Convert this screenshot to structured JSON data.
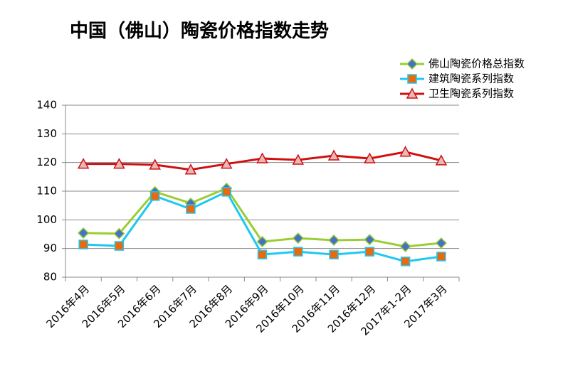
{
  "chart_data": {
    "type": "line",
    "title": "中国（佛山）陶瓷价格指数走势",
    "categories": [
      "2016年4月",
      "2016年5月",
      "2016年6月",
      "2016年7月",
      "2016年8月",
      "2016年9月",
      "2016年10月",
      "2016年11月",
      "2016年12月",
      "2017年1-2月",
      "2017年3月"
    ],
    "series": [
      {
        "name": "佛山陶瓷价格总指数",
        "color": "#9acd32",
        "marker": "diamond",
        "marker_color": "#4472c4",
        "values": [
          95.4,
          95.2,
          109.8,
          105.8,
          111,
          92.4,
          93.6,
          92.9,
          93.1,
          90.7,
          91.9
        ]
      },
      {
        "name": "建筑陶瓷系列指数",
        "color": "#1ec8f0",
        "marker": "square",
        "marker_color": "#e86a10",
        "values": [
          91.4,
          90.9,
          108.3,
          103.8,
          109.8,
          87.9,
          88.9,
          87.9,
          88.9,
          85.5,
          87.2
        ]
      },
      {
        "name": "卫生陶瓷系列指数",
        "color": "#d01010",
        "marker": "triangle",
        "marker_color": "#e8b8b8",
        "values": [
          119.5,
          119.5,
          119.2,
          117.5,
          119.5,
          121.4,
          120.9,
          122.4,
          121.4,
          123.7,
          120.7
        ]
      }
    ],
    "ylim": [
      80,
      140
    ],
    "yticks": [
      80,
      90,
      100,
      110,
      120,
      130,
      140
    ],
    "grid": true,
    "legend": "top-right"
  }
}
